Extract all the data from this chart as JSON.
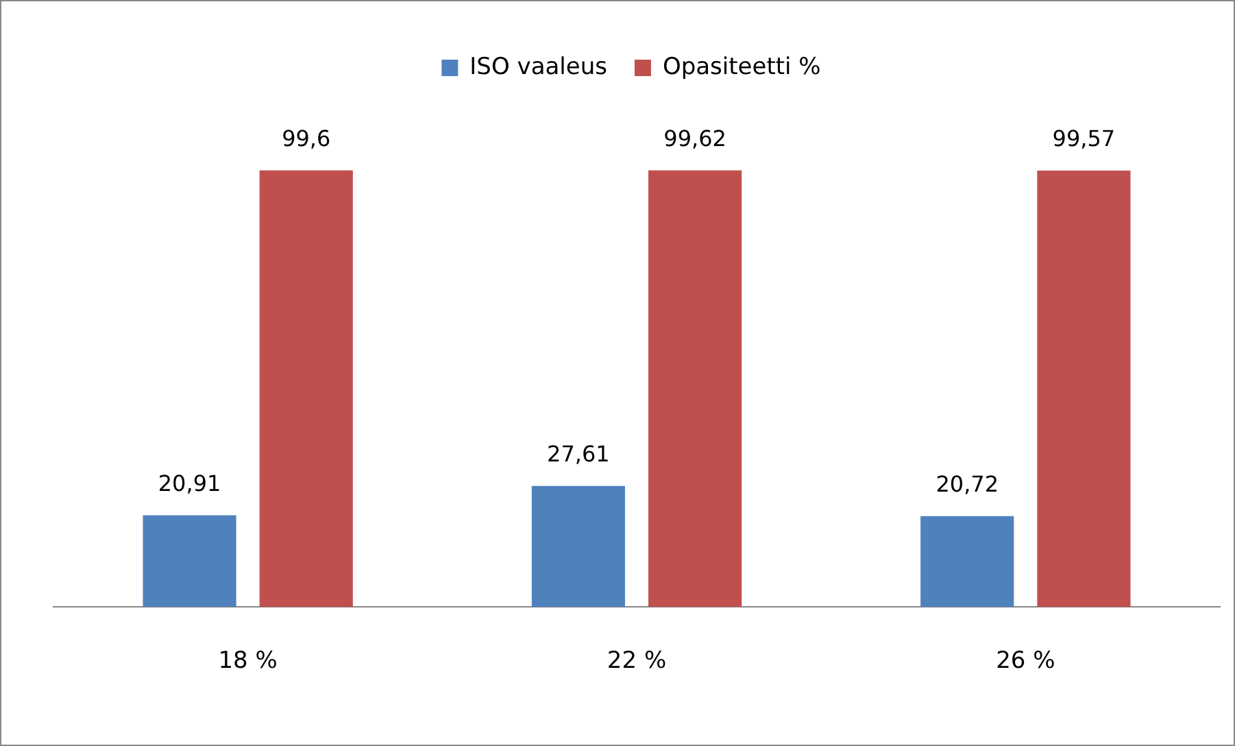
{
  "chart_data": {
    "type": "bar",
    "categories": [
      "18 %",
      "22 %",
      "26 %"
    ],
    "series": [
      {
        "name": "ISO vaaleus",
        "color": "#4f81bd",
        "values": [
          20.91,
          27.61,
          20.72
        ],
        "value_labels": [
          "20,91",
          "27,61",
          "20,72"
        ]
      },
      {
        "name": "Opasiteetti %",
        "color": "#c0504d",
        "values": [
          99.6,
          99.62,
          99.57
        ],
        "value_labels": [
          "99,6",
          "99,62",
          "99,57"
        ]
      }
    ],
    "legend": "top",
    "grid": false
  }
}
